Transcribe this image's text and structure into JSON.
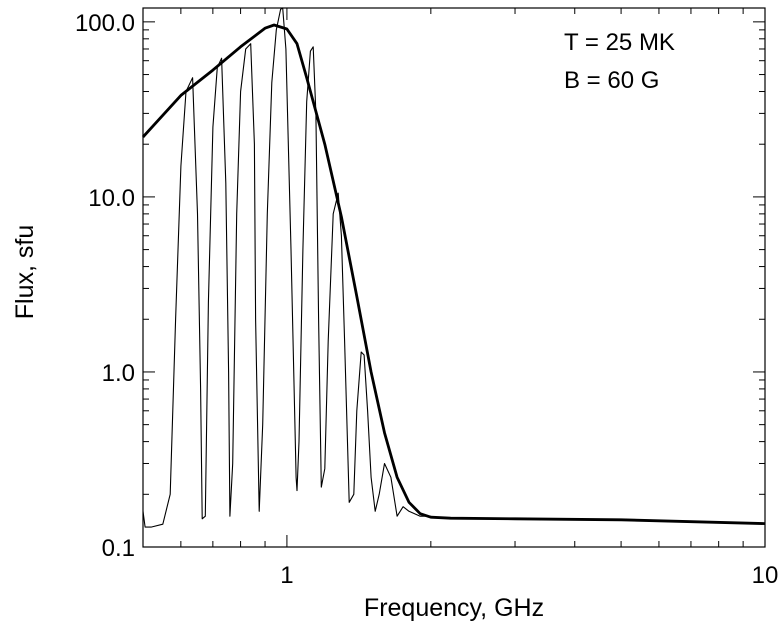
{
  "chart_data": {
    "type": "line",
    "title": "",
    "xlabel": "Frequency, GHz",
    "ylabel": "Flux, sfu",
    "xscale": "log",
    "yscale": "log",
    "xlim": [
      0.5,
      10
    ],
    "ylim": [
      0.1,
      120
    ],
    "x_tick_labels": [
      {
        "value": 1,
        "label": "1"
      },
      {
        "value": 10,
        "label": "10"
      }
    ],
    "y_tick_labels": [
      {
        "value": 0.1,
        "label": "0.1"
      },
      {
        "value": 1,
        "label": "1.0"
      },
      {
        "value": 10,
        "label": "10.0"
      },
      {
        "value": 100,
        "label": "100.0"
      }
    ],
    "annotations": [
      "T = 25 MK",
      "B = 60 G"
    ],
    "annotation_position": "top-right",
    "grid": false,
    "legend": "none",
    "series": [
      {
        "style": "thick",
        "color": "#000000",
        "x": [
          0.5,
          0.6,
          0.7,
          0.8,
          0.9,
          0.94,
          1.0,
          1.05,
          1.1,
          1.2,
          1.3,
          1.4,
          1.5,
          1.6,
          1.7,
          1.8,
          1.9,
          2.0,
          2.2,
          3.0,
          5.0,
          10.0
        ],
        "y": [
          22,
          38,
          53,
          72,
          92,
          96,
          91,
          75,
          48,
          20,
          7.7,
          2.7,
          1.0,
          0.45,
          0.25,
          0.18,
          0.155,
          0.148,
          0.146,
          0.145,
          0.143,
          0.136
        ]
      },
      {
        "style": "thin",
        "color": "#000000",
        "x": [
          0.5,
          0.505,
          0.52,
          0.55,
          0.57,
          0.585,
          0.6,
          0.615,
          0.635,
          0.65,
          0.66,
          0.665,
          0.675,
          0.685,
          0.7,
          0.715,
          0.73,
          0.745,
          0.755,
          0.76,
          0.77,
          0.785,
          0.8,
          0.82,
          0.84,
          0.855,
          0.86,
          0.875,
          0.89,
          0.91,
          0.93,
          0.95,
          0.97,
          0.98,
          0.995,
          1.02,
          1.045,
          1.05,
          1.06,
          1.08,
          1.1,
          1.12,
          1.135,
          1.15,
          1.165,
          1.18,
          1.2,
          1.22,
          1.25,
          1.28,
          1.3,
          1.32,
          1.35,
          1.38,
          1.4,
          1.43,
          1.45,
          1.475,
          1.5,
          1.53,
          1.56,
          1.6,
          1.65,
          1.7,
          1.75,
          1.8,
          1.9,
          2.0
        ],
        "y": [
          0.16,
          0.13,
          0.13,
          0.135,
          0.2,
          2.0,
          15,
          40,
          48,
          8.0,
          0.8,
          0.145,
          0.15,
          2.5,
          25,
          55,
          62,
          12,
          1.0,
          0.15,
          0.3,
          8.0,
          40,
          70,
          75,
          20,
          2.0,
          0.16,
          0.5,
          8.0,
          45,
          90,
          118,
          120,
          70,
          5.0,
          0.25,
          0.21,
          0.4,
          5.0,
          35,
          68,
          72,
          30,
          2.0,
          0.22,
          0.28,
          1.5,
          8.0,
          10.5,
          6.0,
          1.5,
          0.18,
          0.2,
          0.6,
          1.3,
          1.25,
          0.6,
          0.25,
          0.16,
          0.2,
          0.3,
          0.25,
          0.15,
          0.17,
          0.16,
          0.15,
          0.15
        ]
      }
    ]
  }
}
